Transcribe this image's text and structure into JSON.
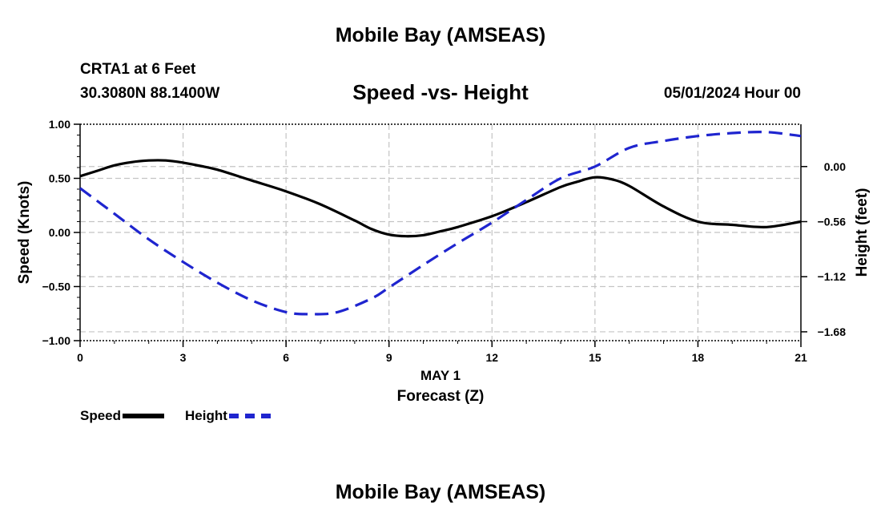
{
  "header": {
    "title": "Mobile Bay (AMSEAS)",
    "station": "CRTA1 at 6 Feet",
    "coordinates": "30.3080N  88.1400W",
    "chart_title": "Speed -vs- Height",
    "date": "05/01/2024 Hour 00"
  },
  "footer": {
    "title": "Mobile Bay (AMSEAS)"
  },
  "chart_data": {
    "type": "line",
    "title": "Speed -vs- Height",
    "xlabel": "Forecast (Z)",
    "xsublabel": "MAY 1",
    "xlim": [
      0,
      21
    ],
    "xticks": [
      0,
      3,
      6,
      9,
      12,
      15,
      18,
      21
    ],
    "grid": true,
    "left_axis": {
      "label": "Speed (Knots)",
      "ylim": [
        -1.0,
        1.0
      ],
      "ticks": [
        1.0,
        0.5,
        0.0,
        -0.5,
        -1.0
      ],
      "tick_labels": [
        "1.00",
        "0.50",
        "0.00",
        "−0.50",
        "−1.00"
      ]
    },
    "right_axis": {
      "label": "Height (feet)",
      "ylim": [
        -1.77,
        0.43
      ],
      "ticks": [
        0.0,
        -0.56,
        -1.12,
        -1.68
      ],
      "tick_labels": [
        "0.00",
        "−0.56",
        "−1.12",
        "−1.68"
      ]
    },
    "series": [
      {
        "name": "Speed",
        "axis": "left",
        "color": "#000000",
        "style": "solid",
        "x": [
          0,
          0.5,
          1,
          1.5,
          2,
          2.5,
          3,
          3.5,
          4,
          5,
          6,
          7,
          8,
          8.5,
          9,
          9.5,
          10,
          10.5,
          11,
          12,
          13,
          14,
          14.5,
          15,
          15.5,
          16,
          17,
          18,
          19,
          20,
          21
        ],
        "values": [
          0.52,
          0.57,
          0.62,
          0.65,
          0.665,
          0.665,
          0.645,
          0.615,
          0.58,
          0.48,
          0.38,
          0.26,
          0.11,
          0.03,
          -0.02,
          -0.035,
          -0.025,
          0.01,
          0.05,
          0.15,
          0.28,
          0.42,
          0.47,
          0.51,
          0.49,
          0.43,
          0.24,
          0.1,
          0.07,
          0.05,
          0.1
        ]
      },
      {
        "name": "Height",
        "axis": "right",
        "color": "#1f25cf",
        "style": "dashed",
        "x": [
          0,
          1,
          2,
          3,
          4,
          5,
          6,
          6.7,
          7.5,
          8.5,
          9,
          10,
          11,
          12,
          13,
          14,
          15,
          16,
          17,
          18,
          19,
          20,
          21
        ],
        "values": [
          -0.22,
          -0.48,
          -0.74,
          -0.97,
          -1.18,
          -1.36,
          -1.48,
          -1.5,
          -1.48,
          -1.34,
          -1.23,
          -1.0,
          -0.78,
          -0.57,
          -0.34,
          -0.12,
          0.0,
          0.19,
          0.26,
          0.31,
          0.34,
          0.35,
          0.31
        ]
      }
    ],
    "legend": [
      {
        "label": "Speed",
        "color": "#000000",
        "style": "solid"
      },
      {
        "label": "Height",
        "color": "#1f25cf",
        "style": "dashed"
      }
    ]
  }
}
